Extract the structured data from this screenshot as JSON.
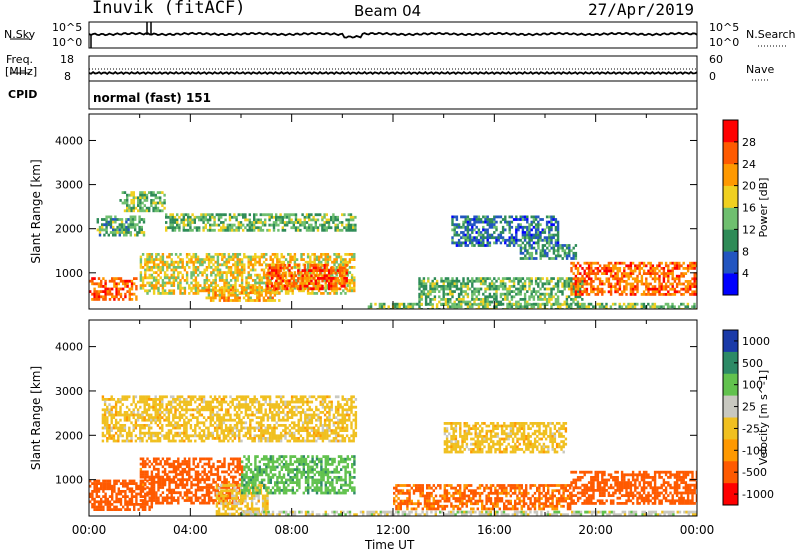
{
  "header": {
    "station": "Inuvik (fitACF)",
    "beam": "Beam 04",
    "date": "27/Apr/2019"
  },
  "top_panels": {
    "nsky_label": "N.Sky",
    "nsky_ticks": [
      "10^5",
      "10^0"
    ],
    "nsearch_label": "N.Search",
    "nsearch_ticks": [
      "10^5",
      "10^0"
    ],
    "freq_label": "Freq.",
    "freq_unit": "[MHz]",
    "freq_ticks": [
      "18",
      "8"
    ],
    "nave_label": "Nave",
    "nave_ticks": [
      "60",
      "0"
    ],
    "cpid_label": "CPID",
    "cpid_text": "normal (fast) 151"
  },
  "chart_data": [
    {
      "type": "heatmap",
      "title": "",
      "ylabel": "Slant Range [km]",
      "xlabel": "",
      "yticks": [
        "1000",
        "2000",
        "3000",
        "4000"
      ],
      "ylim": [
        180,
        4600
      ],
      "xlim_hours": [
        0,
        24
      ],
      "colorbar_label": "Power [dB]",
      "colorbar_ticks": [
        "4",
        "8",
        "12",
        "16",
        "20",
        "24",
        "28"
      ],
      "colorbar_colors": [
        "#0000ff",
        "#2255c0",
        "#2e8b57",
        "#6fbf6f",
        "#f0d020",
        "#ff9900",
        "#ff5a00",
        "#ff0000"
      ],
      "regions": [
        {
          "t": [
            0.0,
            1.9
          ],
          "r": [
            380,
            900
          ],
          "value": 26
        },
        {
          "t": [
            0.3,
            2.2
          ],
          "r": [
            1850,
            2300
          ],
          "value": 12
        },
        {
          "t": [
            1.2,
            3.0
          ],
          "r": [
            2400,
            2850
          ],
          "value": 14
        },
        {
          "t": [
            2.0,
            10.5
          ],
          "r": [
            550,
            1450
          ],
          "value": 18
        },
        {
          "t": [
            4.6,
            7.5
          ],
          "r": [
            350,
            700
          ],
          "value": 20
        },
        {
          "t": [
            7.0,
            10.2
          ],
          "r": [
            650,
            1200
          ],
          "value": 26
        },
        {
          "t": [
            3.0,
            10.5
          ],
          "r": [
            1950,
            2350
          ],
          "value": 13
        },
        {
          "t": [
            14.3,
            18.5
          ],
          "r": [
            1650,
            2300
          ],
          "value": 8
        },
        {
          "t": [
            17.0,
            19.2
          ],
          "r": [
            1300,
            1650
          ],
          "value": 10
        },
        {
          "t": [
            13.0,
            19.5
          ],
          "r": [
            300,
            900
          ],
          "value": 13
        },
        {
          "t": [
            19.0,
            24.0
          ],
          "r": [
            500,
            1250
          ],
          "value": 25
        },
        {
          "t": [
            11.0,
            24.0
          ],
          "r": [
            180,
            320
          ],
          "value": 14
        }
      ]
    },
    {
      "type": "heatmap",
      "title": "",
      "ylabel": "Slant Range [km]",
      "xlabel": "Time UT",
      "xticks": [
        "00:00",
        "04:00",
        "08:00",
        "12:00",
        "16:00",
        "20:00",
        "00:00"
      ],
      "yticks": [
        "1000",
        "2000",
        "3000",
        "4000"
      ],
      "ylim": [
        180,
        4600
      ],
      "xlim_hours": [
        0,
        24
      ],
      "colorbar_label": "Velocity [m s^-1]",
      "colorbar_ticks": [
        "1000",
        "500",
        "100",
        "25",
        "-25",
        "-100",
        "-500",
        "-1000"
      ],
      "colorbar_colors": [
        "#1a3aa8",
        "#2d8a66",
        "#62c24e",
        "#c8c8c0",
        "#f0c020",
        "#ff9900",
        "#ff5a00",
        "#ff0000"
      ],
      "regions": [
        {
          "t": [
            0.0,
            2.5
          ],
          "r": [
            350,
            1000
          ],
          "value": -300
        },
        {
          "t": [
            2.0,
            6.0
          ],
          "r": [
            500,
            1500
          ],
          "value": -250
        },
        {
          "t": [
            5.0,
            7.0
          ],
          "r": [
            180,
            900
          ],
          "value": 5
        },
        {
          "t": [
            6.0,
            10.5
          ],
          "r": [
            700,
            1550
          ],
          "value": 350
        },
        {
          "t": [
            0.5,
            10.5
          ],
          "r": [
            1850,
            2900
          ],
          "value": 0
        },
        {
          "t": [
            14.0,
            18.8
          ],
          "r": [
            1600,
            2300
          ],
          "value": 0
        },
        {
          "t": [
            12.0,
            19.0
          ],
          "r": [
            350,
            900
          ],
          "value": -150
        },
        {
          "t": [
            19.0,
            24.0
          ],
          "r": [
            450,
            1200
          ],
          "value": -300
        },
        {
          "t": [
            6.0,
            24.0
          ],
          "r": [
            180,
            300
          ],
          "value": 60
        }
      ]
    }
  ]
}
